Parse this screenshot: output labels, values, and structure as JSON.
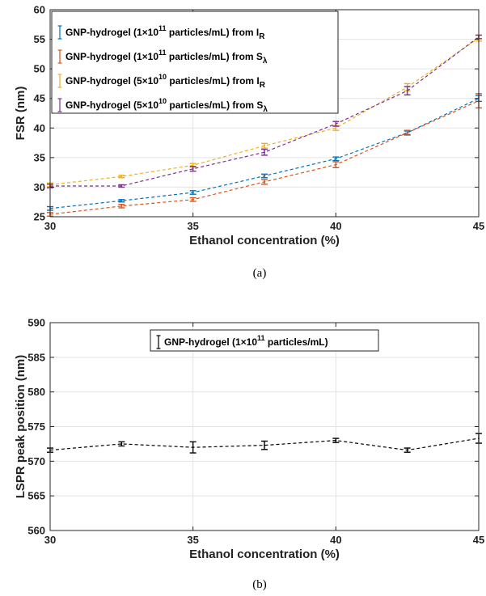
{
  "charts": [
    {
      "caption": "(a)",
      "chart_data": {
        "type": "line",
        "x": [
          30,
          32.5,
          35,
          37.5,
          40,
          42.5,
          45
        ],
        "xlim": [
          30,
          45
        ],
        "ylim": [
          25,
          60
        ],
        "xticks": [
          30,
          35,
          40,
          45
        ],
        "yticks": [
          25,
          30,
          35,
          40,
          45,
          50,
          55,
          60
        ],
        "xlabel": "Ethanol concentration (%)",
        "ylabel": "FSR (nm)",
        "grid": true,
        "legend_position": "top-left",
        "series": [
          {
            "name": "GNP-hydrogel (1×10¹¹ particles/mL) from I_R",
            "legend_parts": {
              "pre": "GNP-hydrogel (1×10",
              "sup": "11",
              "mid": " particles/mL) from I",
              "sub": "R"
            },
            "color": "#0072BD",
            "values": [
              26.4,
              27.7,
              29.1,
              31.9,
              34.8,
              39.2,
              45.0
            ],
            "errors": [
              0.3,
              0.2,
              0.3,
              0.3,
              0.3,
              0.3,
              0.5
            ]
          },
          {
            "name": "GNP-hydrogel (1×10¹¹ particles/mL) from S_λ",
            "legend_parts": {
              "pre": "GNP-hydrogel (1×10",
              "sup": "11",
              "mid": " particles/mL) from S",
              "sub": "λ"
            },
            "color": "#D95319",
            "values": [
              25.4,
              26.8,
              27.9,
              30.9,
              33.8,
              39.2,
              44.6
            ],
            "errors": [
              0.3,
              0.3,
              0.3,
              0.4,
              0.5,
              0.4,
              1.2
            ]
          },
          {
            "name": "GNP-hydrogel (5×10¹⁰ particles/mL) from I_R",
            "legend_parts": {
              "pre": "GNP-hydrogel (5×10",
              "sup": "10",
              "mid": " particles/mL) from I",
              "sub": "R"
            },
            "color": "#EDB120",
            "values": [
              30.4,
              31.8,
              33.7,
              37.0,
              40.0,
              46.9,
              55.2
            ],
            "errors": [
              0.3,
              0.2,
              0.3,
              0.4,
              0.4,
              0.6,
              0.5
            ]
          },
          {
            "name": "GNP-hydrogel (5×10¹⁰ particles/mL) from S_λ",
            "legend_parts": {
              "pre": "GNP-hydrogel (5×10",
              "sup": "10",
              "mid": " particles/mL) from S",
              "sub": "λ"
            },
            "color": "#7E2F8E",
            "values": [
              30.2,
              30.2,
              33.1,
              35.9,
              40.7,
              46.3,
              55.4
            ],
            "errors": [
              0.3,
              0.2,
              0.4,
              0.5,
              0.4,
              0.7,
              0.3
            ]
          }
        ]
      }
    },
    {
      "caption": "(b)",
      "chart_data": {
        "type": "line",
        "x": [
          30,
          32.5,
          35,
          37.5,
          40,
          42.5,
          45
        ],
        "xlim": [
          30,
          45
        ],
        "ylim": [
          560,
          590
        ],
        "xticks": [
          30,
          35,
          40,
          45
        ],
        "yticks": [
          560,
          565,
          570,
          575,
          580,
          585,
          590
        ],
        "xlabel": "Ethanol concentration (%)",
        "ylabel": "LSPR peak position (nm)",
        "grid": true,
        "legend_position": "top-center",
        "series": [
          {
            "name": "GNP-hydrogel (1×10¹¹ particles/mL)",
            "legend_parts": {
              "pre": "GNP-hydrogel (1×10",
              "sup": "11",
              "mid": " particles/mL)",
              "sub": ""
            },
            "color": "#000000",
            "values": [
              571.6,
              572.5,
              572.0,
              572.3,
              573.0,
              571.6,
              573.3
            ],
            "errors": [
              0.3,
              0.3,
              0.8,
              0.6,
              0.3,
              0.3,
              0.7
            ]
          }
        ]
      }
    }
  ]
}
